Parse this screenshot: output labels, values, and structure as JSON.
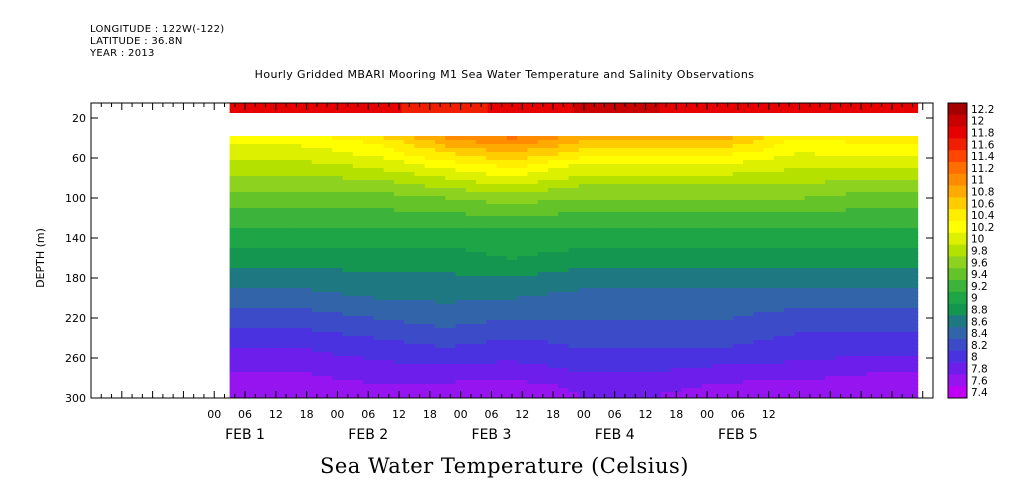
{
  "header": {
    "longitude": "LONGITUDE : 122W(-122)",
    "latitude": "LATITUDE : 36.8N",
    "year": "YEAR : 2013"
  },
  "chart_data": {
    "type": "heatmap",
    "title": "Hourly Gridded MBARI Mooring M1 Sea Water Temperature and Salinity Observations",
    "bottom_title": "Sea Water Temperature (Celsius)",
    "ylabel": "DEPTH (m)",
    "xlabel": "",
    "y_ticks": [
      20,
      60,
      100,
      140,
      180,
      220,
      260,
      300
    ],
    "ylim": [
      5,
      300
    ],
    "y_reversed": true,
    "x_hour_labels": [
      "00",
      "06",
      "12",
      "18",
      "00",
      "06",
      "12",
      "18",
      "00",
      "06",
      "12",
      "18",
      "00",
      "06",
      "12",
      "18",
      "00",
      "06",
      "12"
    ],
    "x_day_labels": [
      "FEB  1",
      "FEB  2",
      "FEB  3",
      "FEB  4",
      "FEB  5"
    ],
    "xlim_hours": [
      -24,
      140
    ],
    "data_start_hour": 3,
    "data_end_hour": 137,
    "colorbar": {
      "levels": [
        "12.2",
        "12",
        "11.8",
        "11.6",
        "11.4",
        "11.2",
        "11",
        "10.8",
        "10.6",
        "10.4",
        "10.2",
        "10",
        "9.8",
        "9.6",
        "9.4",
        "9.2",
        "9",
        "8.8",
        "8.6",
        "8.4",
        "8.2",
        "8",
        "7.8",
        "7.6",
        "7.4"
      ],
      "colors": [
        "#a40000",
        "#c80000",
        "#e60000",
        "#f01e00",
        "#ff4600",
        "#ff6e00",
        "#ff8c00",
        "#ffaa00",
        "#ffcc00",
        "#ffee00",
        "#ffff00",
        "#dcf000",
        "#b4e100",
        "#8cd21e",
        "#64c328",
        "#3cb43c",
        "#1ea546",
        "#159650",
        "#1e7882",
        "#3264aa",
        "#3c4bc8",
        "#4b32e1",
        "#6e1eeb",
        "#9614f0",
        "#c000f5"
      ]
    },
    "surface_row": {
      "depth": 10,
      "values": [
        11.9,
        11.9,
        11.7,
        11.9,
        12.0,
        11.9,
        11.9,
        11.9
      ]
    },
    "profile_columns": [
      {
        "hour": 3,
        "values": [
          10.3,
          9.9,
          9.5,
          9.2,
          8.9,
          8.6,
          8.3,
          8.0,
          7.8,
          7.6
        ]
      },
      {
        "hour": 17,
        "values": [
          10.3,
          9.9,
          9.5,
          9.2,
          8.9,
          8.6,
          8.3,
          8.0,
          7.8,
          7.6
        ]
      },
      {
        "hour": 31,
        "values": [
          10.5,
          10.0,
          9.5,
          9.2,
          8.9,
          8.7,
          8.4,
          8.1,
          7.9,
          7.7
        ]
      },
      {
        "hour": 45,
        "values": [
          11.0,
          10.2,
          9.6,
          9.2,
          8.9,
          8.7,
          8.5,
          8.2,
          7.9,
          7.7
        ]
      },
      {
        "hour": 58,
        "values": [
          11.2,
          10.4,
          9.7,
          9.2,
          9.0,
          8.7,
          8.4,
          8.1,
          7.9,
          7.6
        ]
      },
      {
        "hour": 72,
        "values": [
          10.9,
          10.1,
          9.6,
          9.2,
          8.9,
          8.6,
          8.4,
          8.2,
          8.0,
          7.8
        ]
      },
      {
        "hour": 86,
        "values": [
          10.9,
          10.1,
          9.6,
          9.2,
          8.9,
          8.6,
          8.4,
          8.2,
          8.0,
          7.8
        ]
      },
      {
        "hour": 100,
        "values": [
          10.8,
          10.1,
          9.6,
          9.2,
          8.9,
          8.6,
          8.4,
          8.2,
          7.9,
          7.7
        ]
      },
      {
        "hour": 114,
        "values": [
          10.4,
          10.0,
          9.6,
          9.2,
          8.9,
          8.6,
          8.3,
          8.1,
          7.9,
          7.6
        ]
      },
      {
        "hour": 128,
        "values": [
          10.5,
          10.0,
          9.5,
          9.2,
          8.9,
          8.6,
          8.3,
          8.1,
          7.8,
          7.6
        ]
      },
      {
        "hour": 137,
        "values": [
          10.5,
          10.0,
          9.5,
          9.2,
          8.9,
          8.6,
          8.3,
          8.1,
          7.8,
          7.6
        ]
      }
    ],
    "profile_depths": [
      40,
      70,
      100,
      130,
      160,
      190,
      220,
      250,
      275,
      295
    ]
  }
}
